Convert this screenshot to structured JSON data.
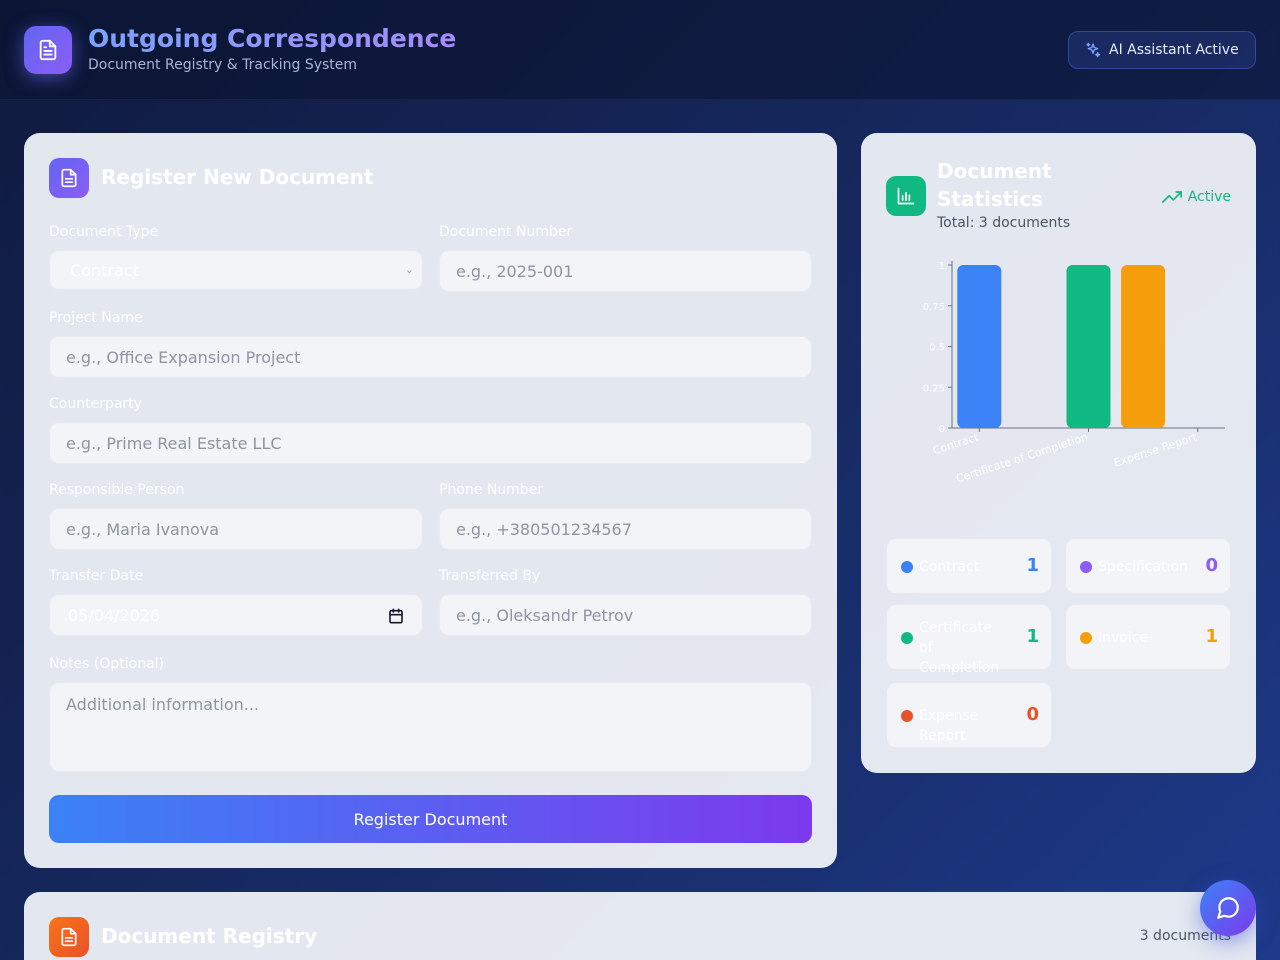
{
  "header": {
    "title": "Outgoing Correspondence",
    "subtitle": "Document Registry & Tracking System",
    "ai_badge": "AI Assistant Active"
  },
  "form": {
    "title": "Register New Document",
    "document_type": {
      "label": "Document Type",
      "value": "Contract"
    },
    "document_number": {
      "label": "Document Number",
      "placeholder": "e.g., 2025-001"
    },
    "project_name": {
      "label": "Project Name",
      "placeholder": "e.g., Office Expansion Project"
    },
    "counterparty": {
      "label": "Counterparty",
      "placeholder": "e.g., Prime Real Estate LLC"
    },
    "responsible_person": {
      "label": "Responsible Person",
      "placeholder": "e.g., Maria Ivanova"
    },
    "phone_number": {
      "label": "Phone Number",
      "placeholder": "e.g., +380501234567"
    },
    "transfer_date": {
      "label": "Transfer Date",
      "value": "05/04/2026"
    },
    "transferred_by": {
      "label": "Transferred By",
      "placeholder": "e.g., Oleksandr Petrov"
    },
    "notes": {
      "label": "Notes (Optional)",
      "placeholder": "Additional information..."
    },
    "submit_label": "Register Document"
  },
  "stats": {
    "title": "Document Statistics",
    "total": "Total: 3 documents",
    "status": "Active",
    "items": [
      {
        "label": "Contract",
        "count": "1",
        "color": "#3b82f6"
      },
      {
        "label": "Specification",
        "count": "0",
        "color": "#8b5cf6"
      },
      {
        "label": "Certificate of Completion",
        "count": "1",
        "color": "#10b981"
      },
      {
        "label": "Invoice",
        "count": "1",
        "color": "#f59e0b"
      },
      {
        "label": "Expense Report",
        "count": "0",
        "color": "#e8522b"
      }
    ]
  },
  "chart_data": {
    "type": "bar",
    "categories": [
      "Contract",
      "Certificate of Completion",
      "Expense Report"
    ],
    "bars": [
      {
        "slot": 0,
        "value": 1,
        "color": "#3b82f6"
      },
      {
        "slot": 2,
        "value": 1,
        "color": "#10b981"
      },
      {
        "slot": 3,
        "value": 1,
        "color": "#f59e0b"
      }
    ],
    "slots": 5,
    "category_slots": [
      0,
      2,
      4
    ],
    "yticks": [
      "0",
      "0.25",
      "0.5",
      "0.75",
      "1"
    ],
    "ylim": [
      0,
      1
    ]
  },
  "registry": {
    "title": "Document Registry",
    "count": "3 documents"
  }
}
